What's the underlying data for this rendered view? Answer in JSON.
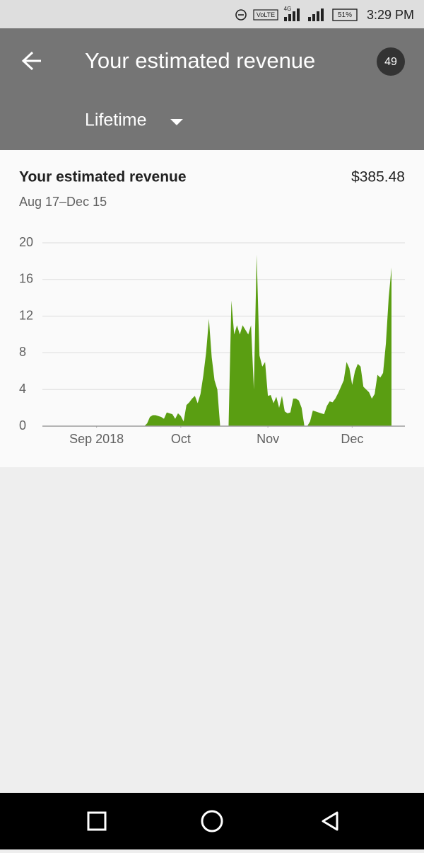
{
  "status_bar": {
    "volte": "VoLTE",
    "network": "4G",
    "battery": "51%",
    "time": "3:29 PM"
  },
  "header": {
    "title": "Your estimated revenue",
    "badge": "49",
    "period": "Lifetime"
  },
  "card": {
    "title": "Your estimated revenue",
    "total": "$385.48",
    "date_range": "Aug 17–Dec 15"
  },
  "chart_data": {
    "type": "area",
    "color": "#5a9e12",
    "grid": true,
    "xlim": [
      0,
      120
    ],
    "ylim": [
      0,
      20
    ],
    "yticks": [
      0,
      4,
      8,
      12,
      16,
      20
    ],
    "xticks": [
      {
        "value": 15,
        "label": "Sep 2018"
      },
      {
        "value": 45,
        "label": "Oct"
      },
      {
        "value": 76,
        "label": "Nov"
      },
      {
        "value": 106,
        "label": "Dec"
      }
    ],
    "values": [
      0,
      0,
      0,
      0,
      0,
      0,
      0,
      0,
      0,
      0,
      0,
      0,
      0,
      0,
      0,
      0,
      0,
      0,
      0,
      0,
      0,
      0,
      0,
      0,
      0,
      0,
      0,
      0,
      0,
      0,
      0,
      0,
      0,
      0.3,
      1.0,
      1.2,
      1.2,
      1.1,
      1.0,
      0.8,
      1.5,
      1.4,
      1.3,
      0.8,
      1.4,
      1.1,
      0.5,
      2.3,
      2.6,
      3.0,
      3.3,
      2.5,
      3.5,
      5.5,
      8,
      11.7,
      7.5,
      5,
      4,
      0,
      0,
      0,
      0,
      13.7,
      10,
      11,
      10,
      11,
      10.5,
      10,
      11,
      4,
      18.7,
      7.7,
      6.5,
      7,
      3.3,
      3.4,
      2.5,
      3.2,
      2,
      3.3,
      1.6,
      1.4,
      1.5,
      3,
      3,
      2.8,
      2,
      0,
      0,
      0.5,
      1.7,
      1.6,
      1.5,
      1.4,
      1.3,
      2.2,
      2.7,
      2.6,
      3,
      3.6,
      4.3,
      5,
      7,
      6.3,
      4.5,
      6,
      6.8,
      6.5,
      4.3,
      4,
      3.7,
      3,
      3.5,
      5.6,
      5.3,
      5.8,
      9,
      14,
      17.3
    ]
  }
}
